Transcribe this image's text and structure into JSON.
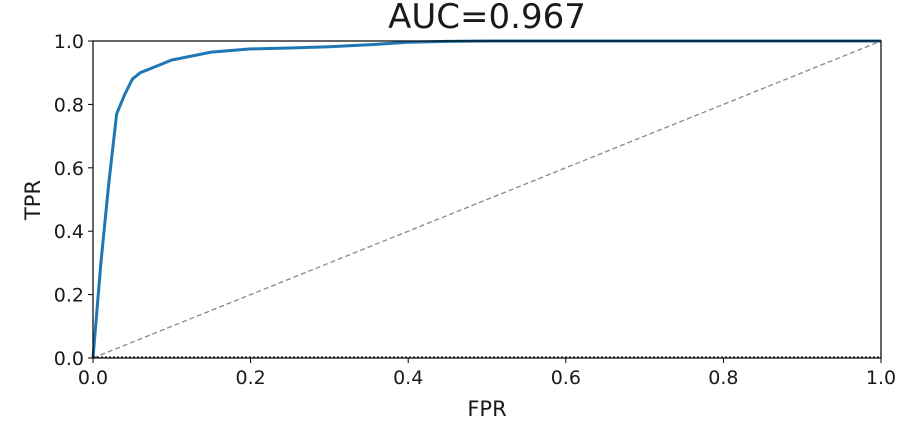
{
  "chart_data": {
    "type": "line",
    "title": "AUC=0.967",
    "xlabel": "FPR",
    "ylabel": "TPR",
    "xlim": [
      0.0,
      1.0
    ],
    "ylim": [
      0.0,
      1.0
    ],
    "xticks": [
      "0.0",
      "0.2",
      "0.4",
      "0.6",
      "0.8",
      "1.0"
    ],
    "yticks": [
      "0.0",
      "0.2",
      "0.4",
      "0.6",
      "0.8",
      "1.0"
    ],
    "grid": false,
    "legend": "none",
    "series": [
      {
        "style": "solid",
        "color": "#1f77b4",
        "x": [
          0.0,
          0.01,
          0.02,
          0.03,
          0.04,
          0.05,
          0.06,
          0.08,
          0.1,
          0.12,
          0.15,
          0.2,
          0.25,
          0.3,
          0.35,
          0.4,
          0.45,
          0.5,
          0.6,
          0.7,
          0.8,
          0.9,
          1.0
        ],
        "y": [
          0.0,
          0.3,
          0.55,
          0.77,
          0.83,
          0.88,
          0.9,
          0.92,
          0.94,
          0.95,
          0.965,
          0.975,
          0.978,
          0.982,
          0.988,
          0.996,
          0.999,
          1.0,
          1.0,
          1.0,
          1.0,
          1.0,
          1.0
        ]
      },
      {
        "style": "dashed",
        "color": "#888888",
        "x": [
          0.0,
          1.0
        ],
        "y": [
          0.0,
          1.0
        ]
      }
    ]
  }
}
